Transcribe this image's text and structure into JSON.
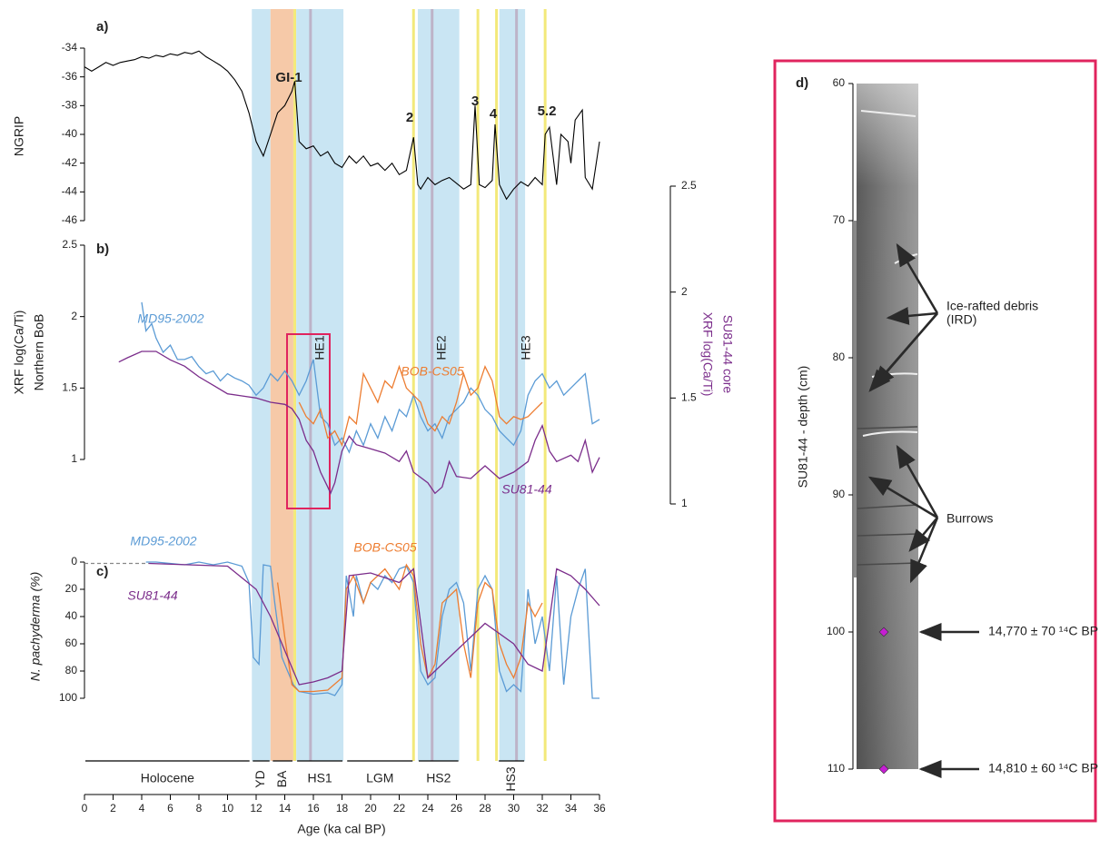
{
  "chart_data": [
    {
      "type": "timeline",
      "xlabel": "Age (ka cal BP)",
      "xlim": [
        0,
        36
      ],
      "xticks": [
        0,
        2,
        4,
        6,
        8,
        10,
        12,
        14,
        16,
        18,
        20,
        22,
        24,
        26,
        28,
        30,
        32,
        34,
        36
      ],
      "bands": [
        {
          "x": [
            11.7,
            13
          ],
          "color": "#c9e5f3"
        },
        {
          "x": [
            13,
            14.6
          ],
          "color": "#f6c9a8"
        },
        {
          "x": [
            14.8,
            18.1
          ],
          "color": "#c9e5f3"
        },
        {
          "x": [
            23.3,
            26.2
          ],
          "color": "#c9e5f3"
        },
        {
          "x": [
            29,
            30.8
          ],
          "color": "#c9e5f3"
        }
      ],
      "event_lines": {
        "color": "#f3e97a",
        "x": [
          14.7,
          23,
          27.5,
          28.8,
          32.2
        ]
      },
      "heinrich_lines": {
        "color": "#bdb3c8",
        "x": [
          15.8,
          24.3,
          30.2
        ]
      },
      "periods": [
        {
          "label": "Holocene",
          "x": [
            0,
            11.6
          ]
        },
        {
          "label": "YD",
          "x": [
            11.7,
            13
          ]
        },
        {
          "label": "BA",
          "x": [
            13.1,
            14.6
          ]
        },
        {
          "label": "HS1",
          "x": [
            14.8,
            18.1
          ]
        },
        {
          "label": "LGM",
          "x": [
            18.3,
            23
          ]
        },
        {
          "label": "HS2",
          "x": [
            23.3,
            26.2
          ]
        },
        {
          "label": "HS3",
          "x": [
            28.9,
            30.8
          ]
        }
      ]
    },
    {
      "type": "line",
      "panel": "a)",
      "ylabel": "NGRIP",
      "ylim": [
        -46,
        -34
      ],
      "yticks": [
        -34,
        -36,
        -38,
        -40,
        -42,
        -44,
        -46
      ],
      "annotations": [
        "GI-1",
        "2",
        "3",
        "4",
        "5.2"
      ],
      "series": [
        {
          "color": "#000000",
          "x": [
            0,
            0.5,
            1,
            1.5,
            2,
            2.5,
            3,
            3.5,
            4,
            4.5,
            5,
            5.5,
            6,
            6.5,
            7,
            7.5,
            8,
            8.5,
            9,
            9.5,
            10,
            10.5,
            11,
            11.5,
            12,
            12.5,
            13,
            13.5,
            14,
            14.5,
            14.7,
            15,
            15.5,
            16,
            16.5,
            17,
            17.5,
            18,
            18.5,
            19,
            19.5,
            20,
            20.5,
            21,
            21.5,
            22,
            22.5,
            23,
            23.3,
            23.5,
            24,
            24.5,
            25,
            25.5,
            26,
            26.5,
            27,
            27.3,
            27.6,
            28,
            28.5,
            28.7,
            29,
            29.5,
            30,
            30.5,
            31,
            31.5,
            32,
            32.2,
            32.5,
            33,
            33.3,
            33.8,
            34,
            34.3,
            34.8,
            35,
            35.5,
            36
          ],
          "values": [
            -35.3,
            -35.6,
            -35.3,
            -35.0,
            -35.2,
            -35.0,
            -34.9,
            -34.8,
            -34.6,
            -34.7,
            -34.5,
            -34.6,
            -34.4,
            -34.5,
            -34.3,
            -34.4,
            -34.2,
            -34.6,
            -34.9,
            -35.2,
            -35.6,
            -36.2,
            -37.0,
            -38.5,
            -40.5,
            -41.5,
            -40.0,
            -38.5,
            -38.0,
            -37.0,
            -36.3,
            -40.5,
            -41,
            -40.8,
            -41.5,
            -41.2,
            -42,
            -42.3,
            -41.5,
            -42,
            -41.5,
            -42.2,
            -42,
            -42.5,
            -42,
            -42.8,
            -42.5,
            -40.2,
            -43.5,
            -43.8,
            -43,
            -43.5,
            -43.2,
            -43,
            -43.4,
            -43.8,
            -43.5,
            -38,
            -43.5,
            -43.7,
            -43.2,
            -39.3,
            -43.5,
            -44.5,
            -43.8,
            -43.3,
            -43.6,
            -43,
            -43.5,
            -40,
            -39.5,
            -43.5,
            -40,
            -40.5,
            -42,
            -39,
            -38.3,
            -43,
            -43.8,
            -40.5
          ]
        }
      ]
    },
    {
      "type": "line",
      "panel": "b)",
      "ylabel": [
        "XRF log(Ca/Ti)",
        "Northern BoB"
      ],
      "y2label": [
        "XRF log(Ca/Ti)",
        "SU81-44 core"
      ],
      "y2label_color": "#7b2d8b",
      "ylim": [
        1,
        2.5
      ],
      "yticks": [
        1,
        1.5,
        2,
        2.5
      ],
      "y2lim": [
        1,
        2.5
      ],
      "y2ticks": [
        1,
        1.5,
        2,
        2.5
      ],
      "he_labels": [
        "HE1",
        "HE2",
        "HE3"
      ],
      "series": [
        {
          "name": "MD95-2002",
          "color": "#5b9bd5",
          "x": [
            4,
            4.3,
            4.7,
            5,
            5.5,
            6,
            6.5,
            7,
            7.5,
            8,
            8.5,
            9,
            9.5,
            10,
            10.5,
            11,
            11.5,
            12,
            12.5,
            13,
            13.5,
            14,
            14.5,
            15,
            15.5,
            16,
            16.5,
            17,
            17.5,
            18,
            18.5,
            19,
            19.5,
            20,
            20.5,
            21,
            21.5,
            22,
            22.5,
            23,
            23.5,
            24,
            24.5,
            25,
            25.5,
            26,
            26.5,
            27,
            27.5,
            28,
            28.5,
            29,
            29.5,
            30,
            30.5,
            31,
            31.5,
            32,
            32.5,
            33,
            33.5,
            34,
            34.5,
            35,
            35.5,
            36
          ],
          "values": [
            2.1,
            1.9,
            1.95,
            1.85,
            1.75,
            1.8,
            1.7,
            1.7,
            1.72,
            1.65,
            1.6,
            1.62,
            1.55,
            1.6,
            1.57,
            1.55,
            1.52,
            1.45,
            1.5,
            1.6,
            1.55,
            1.62,
            1.55,
            1.45,
            1.55,
            1.7,
            1.3,
            1.25,
            1.1,
            1.15,
            1.05,
            1.2,
            1.1,
            1.25,
            1.15,
            1.3,
            1.2,
            1.35,
            1.3,
            1.45,
            1.3,
            1.2,
            1.25,
            1.15,
            1.3,
            1.35,
            1.4,
            1.5,
            1.45,
            1.35,
            1.3,
            1.2,
            1.15,
            1.1,
            1.2,
            1.45,
            1.55,
            1.6,
            1.5,
            1.55,
            1.45,
            1.5,
            1.55,
            1.6,
            1.25,
            1.28
          ]
        },
        {
          "name": "BOB-CS05",
          "color": "#ed7d31",
          "x": [
            15,
            15.5,
            16,
            16.5,
            17,
            17.5,
            18,
            18.5,
            19,
            19.5,
            20,
            20.5,
            21,
            21.5,
            22,
            22.5,
            23,
            23.5,
            24,
            24.5,
            25,
            25.5,
            26,
            26.5,
            27,
            27.5,
            28,
            28.5,
            29,
            29.5,
            30,
            30.5,
            31,
            31.5,
            32
          ],
          "values": [
            1.4,
            1.3,
            1.25,
            1.35,
            1.15,
            1.2,
            1.1,
            1.3,
            1.25,
            1.6,
            1.5,
            1.4,
            1.55,
            1.5,
            1.65,
            1.5,
            1.45,
            1.4,
            1.25,
            1.2,
            1.3,
            1.25,
            1.4,
            1.6,
            1.45,
            1.5,
            1.65,
            1.55,
            1.3,
            1.25,
            1.3,
            1.28,
            1.3,
            1.35,
            1.4
          ]
        },
        {
          "name": "SU81-44",
          "color": "#7b2d8b",
          "axis": "y2",
          "x": [
            2.4,
            3,
            4,
            5,
            6,
            7,
            8,
            9,
            10,
            11,
            12,
            13,
            14,
            14.5,
            15,
            15.5,
            16,
            16.5,
            17,
            17.2,
            17.5,
            18,
            18.5,
            19,
            20,
            21,
            22,
            22.5,
            23,
            24,
            24.5,
            25,
            25.5,
            26,
            27,
            28,
            28.5,
            29,
            30,
            31,
            31.5,
            32,
            32.5,
            33,
            34,
            34.5,
            35,
            35.5,
            36
          ],
          "values": [
            1.67,
            1.69,
            1.72,
            1.72,
            1.68,
            1.65,
            1.6,
            1.56,
            1.52,
            1.51,
            1.5,
            1.48,
            1.47,
            1.45,
            1.4,
            1.3,
            1.25,
            1.15,
            1.08,
            1.05,
            1.1,
            1.25,
            1.32,
            1.28,
            1.26,
            1.24,
            1.2,
            1.25,
            1.15,
            1.1,
            1.05,
            1.08,
            1.2,
            1.13,
            1.12,
            1.18,
            1.15,
            1.12,
            1.15,
            1.2,
            1.3,
            1.37,
            1.25,
            1.2,
            1.23,
            1.2,
            1.3,
            1.15,
            1.22
          ]
        }
      ]
    },
    {
      "type": "line",
      "panel": "c)",
      "ylabel": "N. pachyderma (%)",
      "ylim": [
        100,
        0
      ],
      "yticks": [
        0,
        20,
        40,
        60,
        80,
        100
      ],
      "series": [
        {
          "name": "MD95-2002",
          "color": "#5b9bd5",
          "x": [
            4.3,
            5,
            6,
            7,
            8,
            9,
            10,
            11,
            11.5,
            11.8,
            12.2,
            12.5,
            13,
            13.3,
            13.8,
            14.2,
            14.6,
            15,
            16,
            17,
            17.5,
            18,
            18.3,
            18.8,
            19,
            19.5,
            20,
            20.5,
            21,
            21.5,
            22,
            22.5,
            23,
            23.5,
            24,
            24.5,
            25,
            25.5,
            26,
            26.5,
            27,
            27.5,
            28,
            28.5,
            29,
            29.5,
            30,
            30.5,
            31,
            31.5,
            32,
            32.5,
            33,
            33.5,
            34,
            34.5,
            35,
            35.5,
            36
          ],
          "values": [
            0,
            0,
            1,
            2,
            0,
            2,
            0,
            3,
            15,
            70,
            75,
            2,
            3,
            30,
            70,
            80,
            90,
            95,
            97,
            96,
            98,
            90,
            10,
            40,
            10,
            30,
            15,
            20,
            10,
            15,
            5,
            3,
            15,
            80,
            90,
            85,
            40,
            20,
            15,
            30,
            80,
            20,
            10,
            20,
            80,
            95,
            90,
            95,
            20,
            60,
            40,
            80,
            10,
            90,
            40,
            20,
            5,
            100,
            100
          ]
        },
        {
          "name": "BOB-CS05",
          "color": "#ed7d31",
          "x": [
            13.5,
            14,
            14.5,
            15,
            16,
            17,
            18,
            18.3,
            18.8,
            19.5,
            20,
            21,
            22,
            22.5,
            23,
            23.5,
            24,
            24.5,
            25,
            26,
            26.5,
            27,
            27.5,
            28,
            28.5,
            29,
            29.5,
            30,
            30.5,
            31,
            31.5,
            32
          ],
          "values": [
            15,
            55,
            90,
            95,
            95,
            94,
            85,
            20,
            10,
            30,
            15,
            5,
            20,
            2,
            10,
            60,
            85,
            75,
            30,
            20,
            60,
            85,
            30,
            15,
            20,
            60,
            75,
            85,
            70,
            30,
            40,
            30
          ]
        },
        {
          "name": "SU81-44",
          "color": "#7b2d8b",
          "x": [
            4.5,
            10,
            12,
            13,
            15,
            16,
            17,
            18,
            18.5,
            20,
            22,
            23,
            24,
            26,
            27,
            28,
            30,
            31,
            32,
            33,
            34,
            35,
            36
          ],
          "values": [
            1,
            3,
            20,
            40,
            90,
            88,
            85,
            80,
            10,
            8,
            15,
            5,
            85,
            65,
            55,
            45,
            60,
            75,
            80,
            5,
            10,
            20,
            32
          ]
        },
        {
          "color": "#888888",
          "dash": true,
          "x": [
            0,
            4.5
          ],
          "values": [
            1,
            1
          ]
        }
      ]
    },
    {
      "type": "core",
      "panel": "d)",
      "ylabel": "SU81-44 - depth (cm)",
      "ylim": [
        110,
        60
      ],
      "yticks": [
        60,
        70,
        80,
        90,
        100,
        110
      ],
      "ird_label": [
        "Ice-rafted debris",
        "(IRD)"
      ],
      "burrows_label": "Burrows",
      "sample_color": "#c51fd2",
      "samples": [
        {
          "depth": 100,
          "label": "14,770 ± 70 ¹⁴C BP"
        },
        {
          "depth": 110,
          "label": "14,810 ± 60 ¹⁴C BP"
        }
      ]
    }
  ]
}
